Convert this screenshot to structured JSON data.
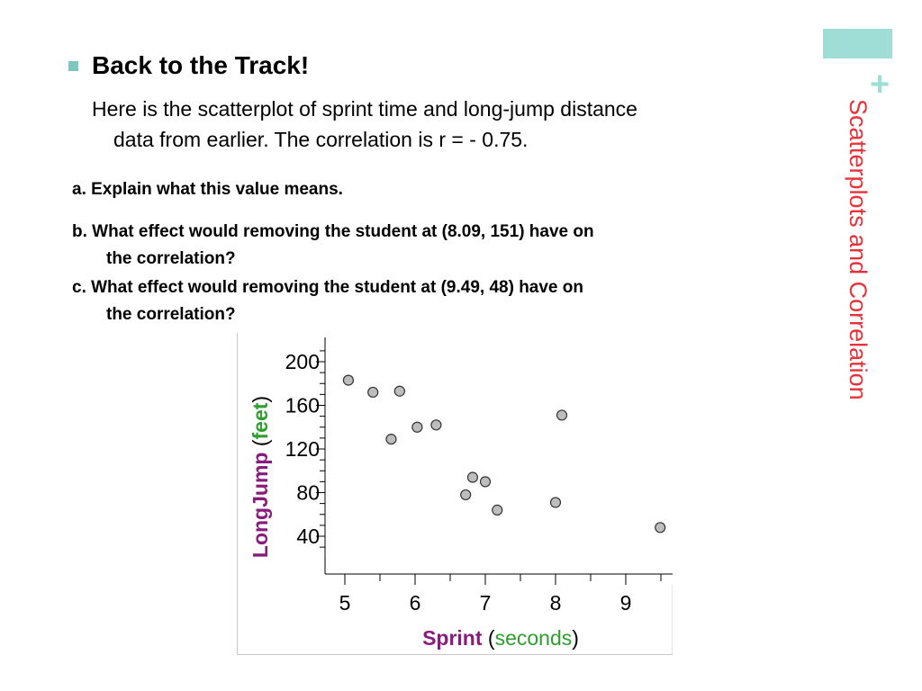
{
  "slide": {
    "side_title": "Scatterplots and Correlation",
    "plus_symbol": "+",
    "heading": "Back to the Track!",
    "intro_line1": "Here is the scatterplot of sprint time and long-jump distance",
    "intro_line2": "data from earlier.  The correlation is r = - 0.75.",
    "question_a": "a. Explain what this value means.",
    "question_b_line1": "b. What effect would removing the student at (8.09, 151) have on",
    "question_b_line2": "the correlation?",
    "question_c_line1": "c. What effect would removing the student at (9.49, 48) have on",
    "question_c_line2": "the correlation?",
    "colors": {
      "accent": "#9fded6",
      "title": "#e8323a",
      "bullet": "#7cc8c0"
    }
  },
  "chart_data": {
    "type": "scatter",
    "xlabel_main": "Sprint",
    "xlabel_unit": "seconds",
    "ylabel_main": "LongJump",
    "ylabel_unit": "feet",
    "xlim": [
      4.9,
      9.5
    ],
    "ylim": [
      20,
      215
    ],
    "x_ticks": [
      5,
      6,
      7,
      8,
      9
    ],
    "y_ticks": [
      40,
      80,
      120,
      160,
      200
    ],
    "points": [
      {
        "x": 5.05,
        "y": 183
      },
      {
        "x": 5.4,
        "y": 172
      },
      {
        "x": 5.78,
        "y": 173
      },
      {
        "x": 5.66,
        "y": 129
      },
      {
        "x": 6.03,
        "y": 140
      },
      {
        "x": 6.3,
        "y": 142
      },
      {
        "x": 6.82,
        "y": 94
      },
      {
        "x": 7.0,
        "y": 90
      },
      {
        "x": 6.72,
        "y": 78
      },
      {
        "x": 7.17,
        "y": 64
      },
      {
        "x": 8.09,
        "y": 151
      },
      {
        "x": 8.0,
        "y": 71
      },
      {
        "x": 9.49,
        "y": 48
      }
    ],
    "colors": {
      "label_main": "#8b1a7e",
      "label_unit": "#2e9e2e",
      "point_fill": "#bdbdbd",
      "point_stroke": "#333333"
    }
  }
}
